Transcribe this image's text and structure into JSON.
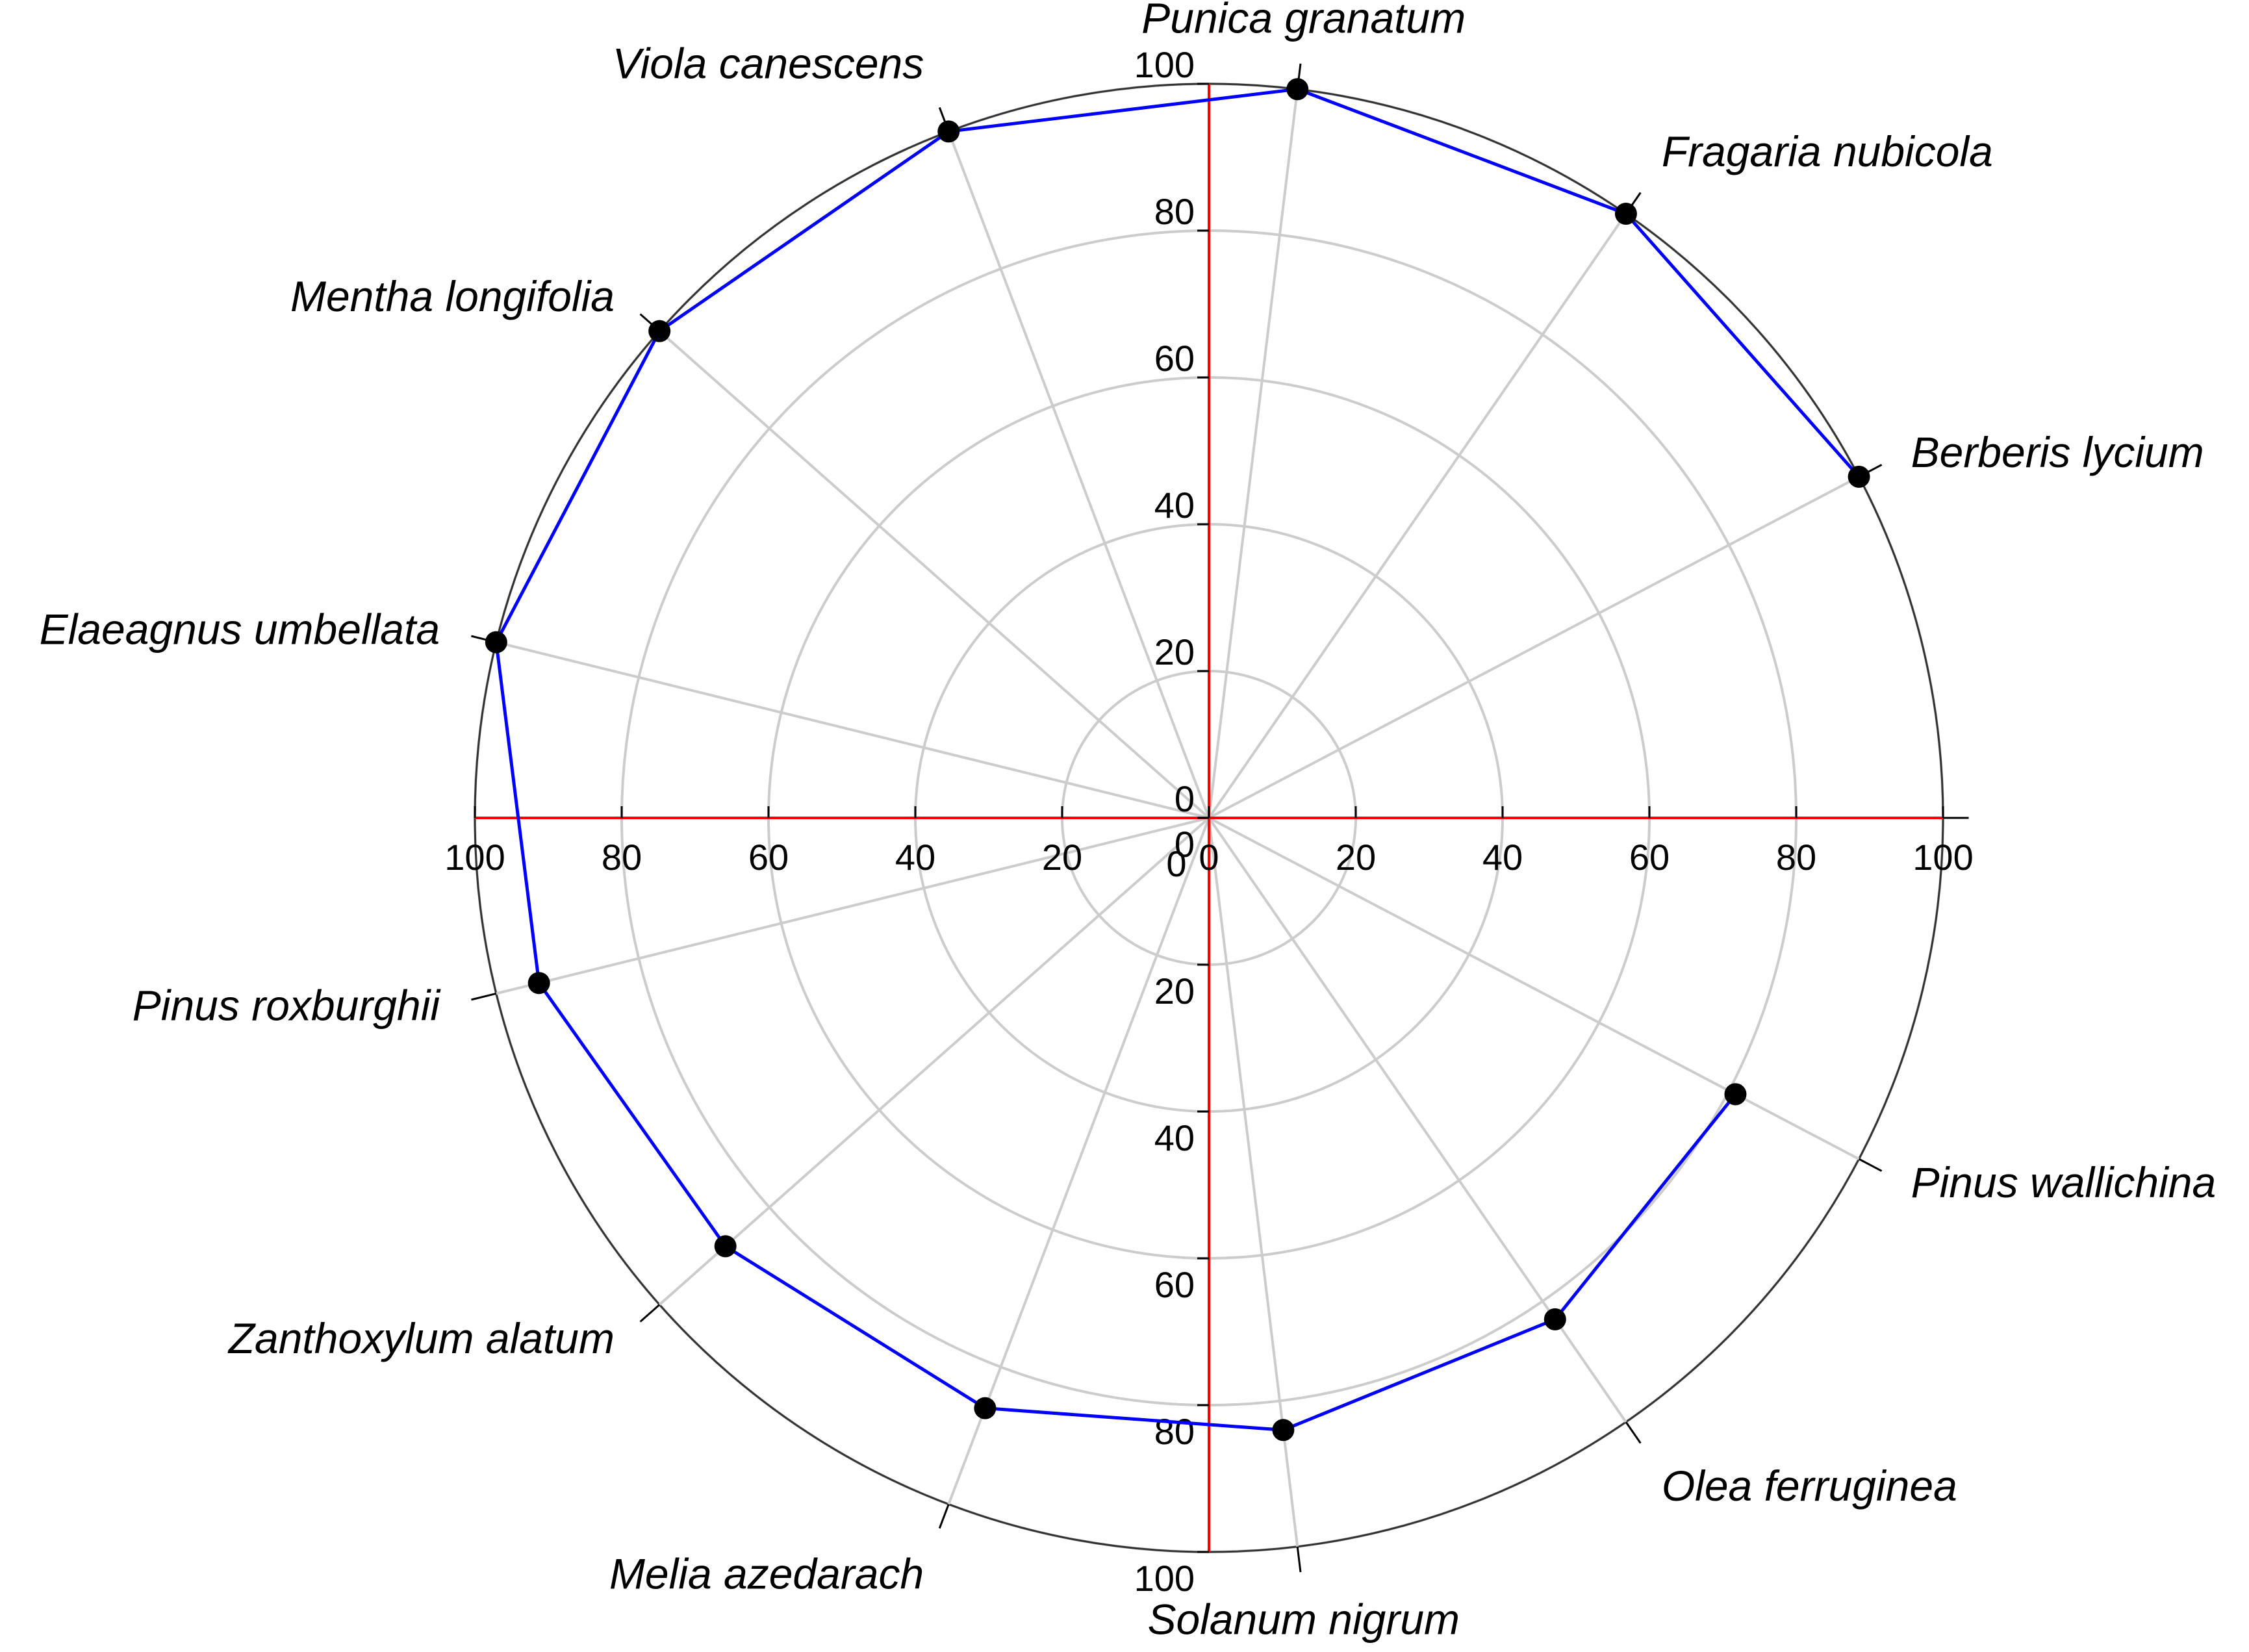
{
  "chart_data": {
    "type": "polar",
    "categories": [
      null,
      "Pinus wallichina",
      "Olea ferruginea",
      "Solanum nigrum",
      "Melia azedarach",
      "Zanthoxylum alatum",
      "Pinus roxburghii",
      "Elaeagnus umbellata",
      "Mentha  longifolia",
      "Viola canescens",
      "Punica granatum",
      "Fragaria nubicola",
      "Berberis lycium"
    ],
    "series": [
      {
        "color": "#0000ff",
        "marker_color": "#000000",
        "values": [
          null,
          81,
          83,
          84,
          86,
          88,
          94,
          100,
          100,
          100,
          100,
          100,
          100
        ]
      }
    ],
    "rlim": [
      0,
      100
    ],
    "rticks": [
      0,
      20,
      40,
      60,
      80,
      100
    ],
    "grid": true,
    "axis_color": "#ff0000"
  }
}
